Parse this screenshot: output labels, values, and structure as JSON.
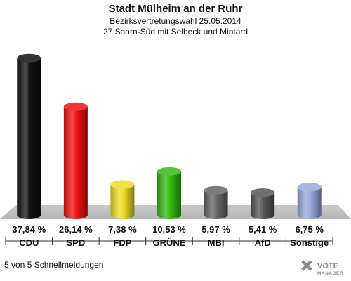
{
  "chart_data": {
    "type": "bar",
    "title": "Stadt Mülheim an der Ruhr",
    "subtitle_1": "Bezirksvertretungswahl 25.05.2014",
    "subtitle_2": "27 Saarn-Süd mit Selbeck und Mintard",
    "categories": [
      "CDU",
      "SPD",
      "FDP",
      "GRÜNE",
      "MBI",
      "AfD",
      "Sonstige"
    ],
    "values": [
      37.84,
      26.14,
      7.38,
      10.53,
      5.97,
      5.41,
      6.75
    ],
    "value_labels": [
      "37,84 %",
      "26,14 %",
      "7,38 %",
      "10,53 %",
      "5,97 %",
      "5,41 %",
      "6,75 %"
    ],
    "colors": [
      "#111111",
      "#ee1111",
      "#eedd22",
      "#33bb11",
      "#666666",
      "#555555",
      "#99aadd"
    ],
    "ylim": [
      0,
      40
    ]
  },
  "footnote": "5 von 5 Schnellmeldungen",
  "logo": {
    "line1": "VOTE",
    "line2": "MANAGER"
  }
}
